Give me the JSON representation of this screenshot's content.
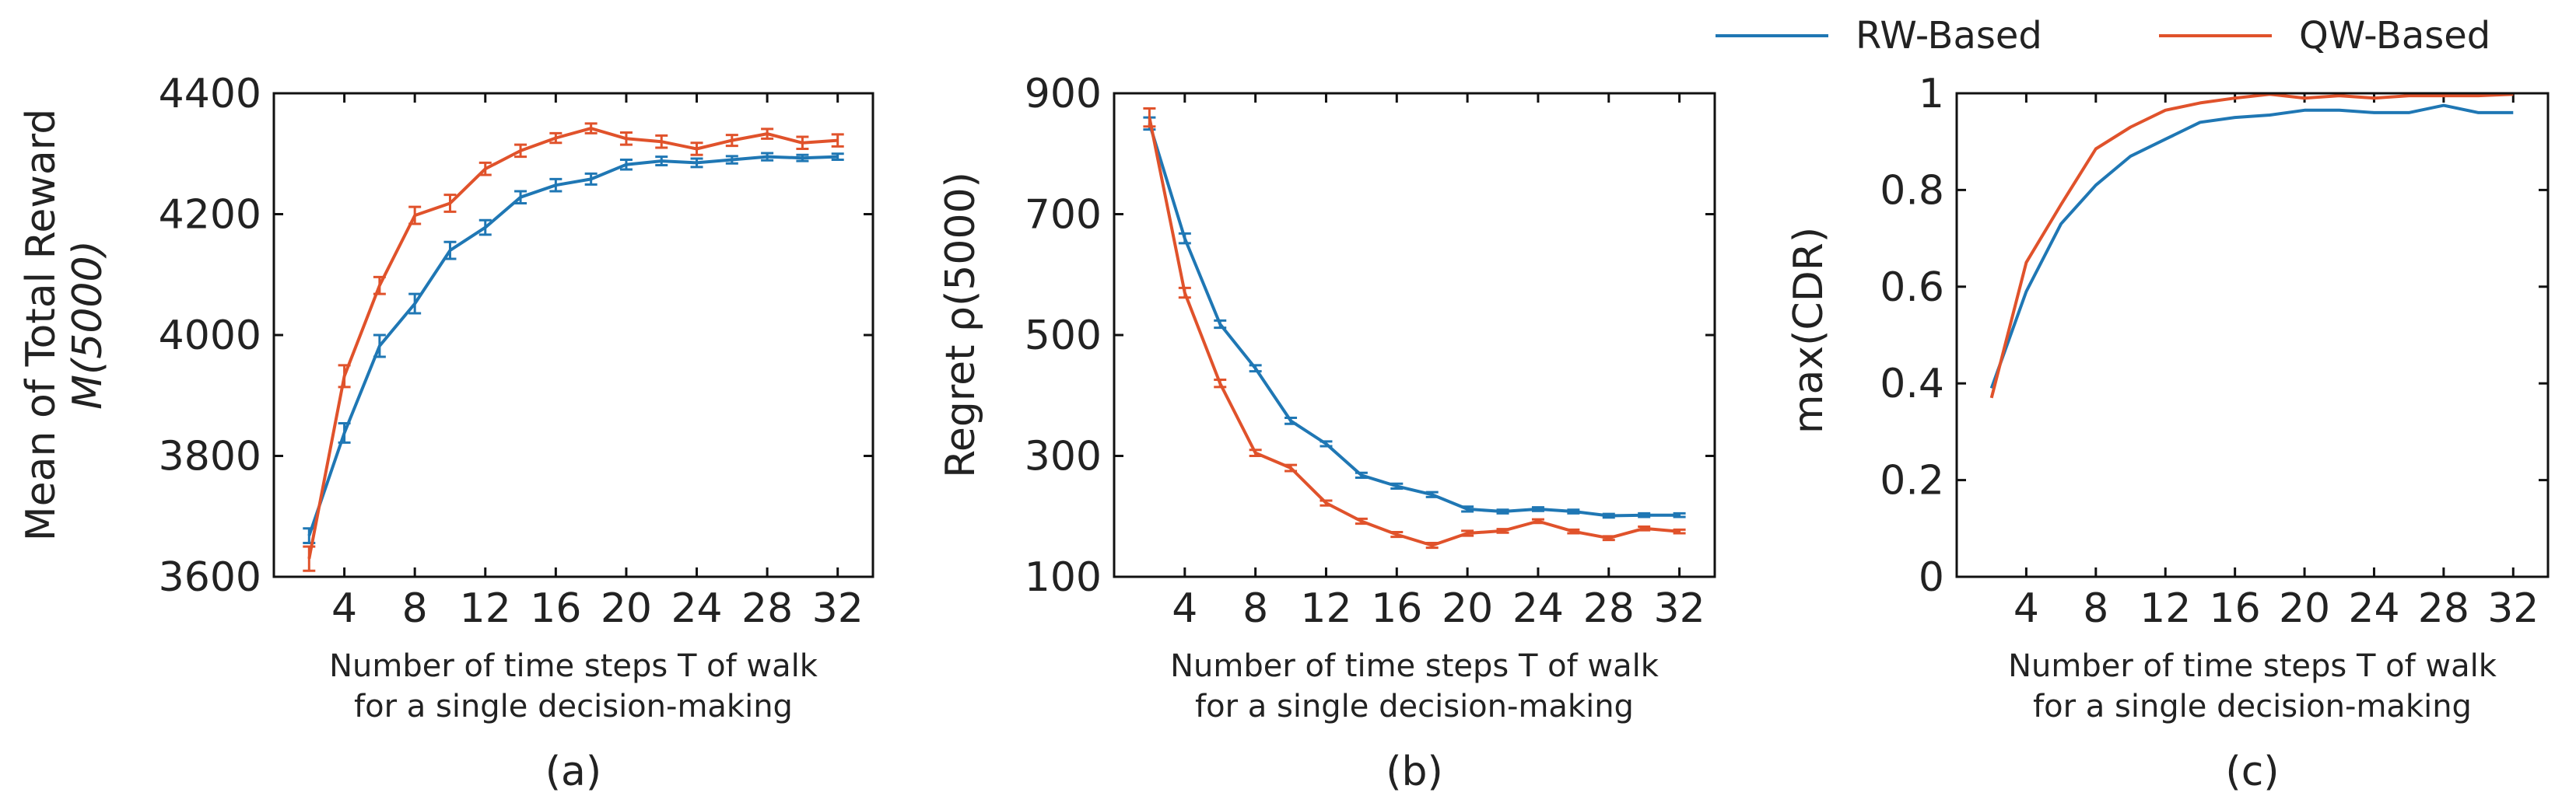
{
  "legend": [
    {
      "name": "RW-Based",
      "color": "#1f77b4"
    },
    {
      "name": "QW-Based",
      "color": "#e0522b"
    }
  ],
  "chart_data": [
    {
      "type": "line",
      "panel_label": "(a)",
      "ylabel_line1": "Mean of Total Reward",
      "ylabel_line2": "M(5000)",
      "xlabel_line1": "Number of time steps T of walk",
      "xlabel_line2": "for a single decision-making",
      "x": [
        2,
        4,
        6,
        8,
        10,
        12,
        14,
        16,
        18,
        20,
        22,
        24,
        26,
        28,
        30,
        32
      ],
      "xlim": [
        0,
        34
      ],
      "ylim": [
        3600,
        4400
      ],
      "xticks": [
        4,
        8,
        12,
        16,
        20,
        24,
        28,
        32
      ],
      "yticks": [
        3600,
        3800,
        4000,
        4200,
        4400
      ],
      "ytick_labels": [
        "3600",
        "3800",
        "4000",
        "4200",
        "4400"
      ],
      "error_bars": true,
      "series": [
        {
          "name": "RW-Based",
          "color": "#1f77b4",
          "values": [
            3668,
            3838,
            3982,
            4052,
            4140,
            4178,
            4228,
            4248,
            4258,
            4282,
            4288,
            4285,
            4290,
            4295,
            4293,
            4295
          ],
          "errors": [
            12,
            16,
            18,
            16,
            14,
            12,
            10,
            10,
            9,
            8,
            7,
            7,
            6,
            6,
            5,
            5
          ]
        },
        {
          "name": "QW-Based",
          "color": "#e0522b",
          "values": [
            3630,
            3932,
            4082,
            4198,
            4218,
            4275,
            4305,
            4326,
            4342,
            4325,
            4320,
            4308,
            4322,
            4333,
            4318,
            4322
          ],
          "errors": [
            20,
            18,
            14,
            14,
            14,
            10,
            10,
            8,
            8,
            10,
            10,
            10,
            9,
            8,
            10,
            10
          ]
        }
      ]
    },
    {
      "type": "line",
      "panel_label": "(b)",
      "ylabel": "Regret  ρ(5000)",
      "xlabel_line1": "Number of time steps T of walk",
      "xlabel_line2": "for a single decision-making",
      "x": [
        2,
        4,
        6,
        8,
        10,
        12,
        14,
        16,
        18,
        20,
        22,
        24,
        26,
        28,
        30,
        32
      ],
      "xlim": [
        0,
        34
      ],
      "ylim": [
        100,
        900
      ],
      "xticks": [
        4,
        8,
        12,
        16,
        20,
        24,
        28,
        32
      ],
      "yticks": [
        100,
        300,
        500,
        700,
        900
      ],
      "ytick_labels": [
        "100",
        "300",
        "500",
        "700",
        "900"
      ],
      "error_bars": true,
      "series": [
        {
          "name": "RW-Based",
          "color": "#1f77b4",
          "values": [
            850,
            660,
            518,
            445,
            358,
            320,
            268,
            250,
            236,
            212,
            208,
            212,
            208,
            201,
            202,
            202
          ],
          "errors": [
            10,
            8,
            6,
            5,
            5,
            4,
            4,
            4,
            4,
            4,
            3,
            3,
            3,
            3,
            3,
            3
          ]
        },
        {
          "name": "QW-Based",
          "color": "#e0522b",
          "values": [
            860,
            570,
            420,
            305,
            280,
            222,
            192,
            170,
            152,
            172,
            176,
            192,
            175,
            164,
            180,
            175
          ],
          "errors": [
            15,
            8,
            6,
            5,
            5,
            4,
            4,
            4,
            4,
            4,
            3,
            3,
            3,
            3,
            3,
            3
          ]
        }
      ]
    },
    {
      "type": "line",
      "panel_label": "(c)",
      "ylabel": "max(CDR)",
      "xlabel_line1": "Number of time steps T of walk",
      "xlabel_line2": "for a single decision-making",
      "x": [
        2,
        4,
        6,
        8,
        10,
        12,
        14,
        16,
        18,
        20,
        22,
        24,
        26,
        28,
        30,
        32
      ],
      "xlim": [
        0,
        34
      ],
      "ylim": [
        0,
        1
      ],
      "xticks": [
        4,
        8,
        12,
        16,
        20,
        24,
        28,
        32
      ],
      "yticks": [
        0,
        0.2,
        0.4,
        0.6,
        0.8,
        1
      ],
      "ytick_labels": [
        "0",
        "0.2",
        "0.4",
        "0.6",
        "0.8",
        "1"
      ],
      "error_bars": false,
      "series": [
        {
          "name": "RW-Based",
          "color": "#1f77b4",
          "values": [
            0.39,
            0.59,
            0.73,
            0.81,
            0.87,
            0.905,
            0.94,
            0.95,
            0.955,
            0.965,
            0.965,
            0.96,
            0.96,
            0.975,
            0.96,
            0.96
          ]
        },
        {
          "name": "QW-Based",
          "color": "#e0522b",
          "values": [
            0.37,
            0.65,
            0.77,
            0.885,
            0.93,
            0.965,
            0.98,
            0.99,
            0.998,
            0.99,
            0.995,
            0.99,
            0.995,
            0.995,
            0.995,
            0.998
          ]
        }
      ]
    }
  ]
}
